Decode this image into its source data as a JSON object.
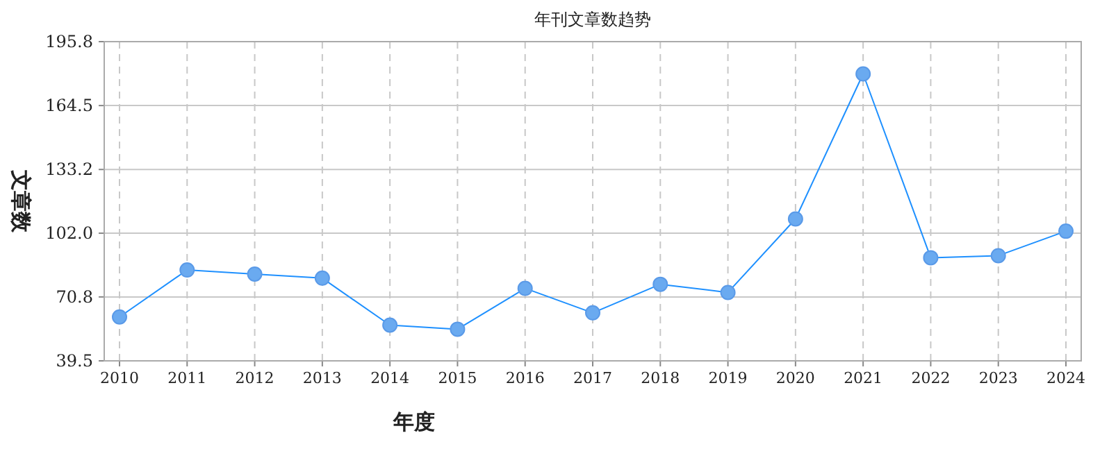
{
  "chart_data": {
    "type": "line",
    "title": "年刊文章数趋势",
    "xlabel": "年度",
    "ylabel": "文章数",
    "categories": [
      "2010",
      "2011",
      "2012",
      "2013",
      "2014",
      "2015",
      "2016",
      "2017",
      "2018",
      "2019",
      "2020",
      "2021",
      "2022",
      "2023",
      "2024"
    ],
    "series": [
      {
        "color": "#1e90ff",
        "values": [
          61,
          84,
          82,
          80,
          57,
          55,
          75,
          63,
          77,
          73,
          109,
          180,
          90,
          91,
          103
        ]
      }
    ],
    "ylim": [
      39.5,
      195.8
    ],
    "yticks": [
      39.5,
      70.8,
      {
        "value": 102,
        "label": "102.0"
      },
      133.2,
      164.5,
      195.8
    ],
    "grid": true,
    "marker": "circle",
    "line_style": "solid"
  }
}
